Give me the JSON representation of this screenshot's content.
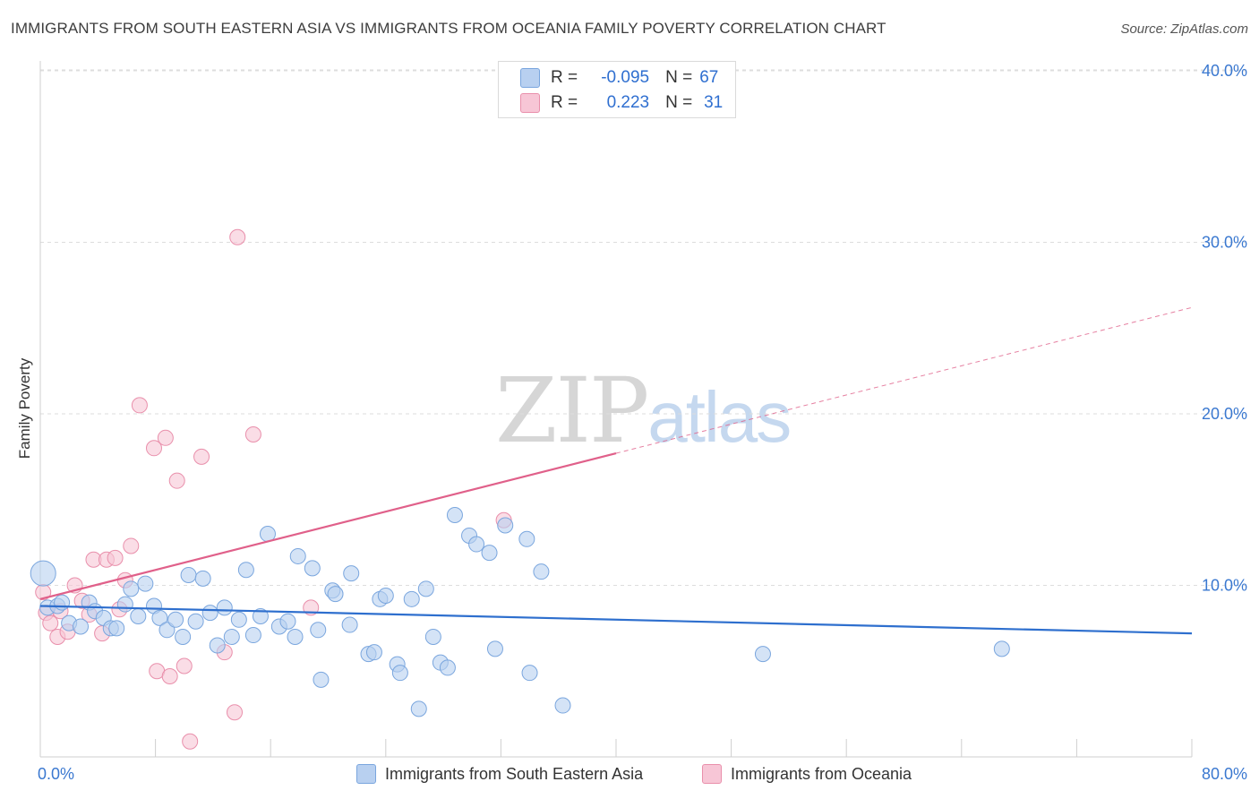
{
  "header": {
    "title": "IMMIGRANTS FROM SOUTH EASTERN ASIA VS IMMIGRANTS FROM OCEANIA FAMILY POVERTY CORRELATION CHART",
    "source": "Source: ZipAtlas.com"
  },
  "legend": {
    "row1": {
      "r_label": "R =",
      "r_value": "-0.095",
      "n_label": "N =",
      "n_value": "67"
    },
    "row2": {
      "r_label": "R =",
      "r_value": "0.223",
      "n_label": "N =",
      "n_value": "31"
    }
  },
  "watermark": {
    "zip": "ZIP",
    "atlas": "atlas"
  },
  "bottom_legend": {
    "series1": "Immigrants from South Eastern Asia",
    "series2": "Immigrants from Oceania"
  },
  "colors": {
    "blue_fill": "#b8d0f0",
    "blue_stroke": "#7aa6de",
    "blue_line": "#2e6fce",
    "pink_fill": "#f7c6d6",
    "pink_stroke": "#e98fab",
    "pink_line": "#e0608a",
    "tick_label": "#3a78d0",
    "grid": "#dddddd"
  },
  "chart_data": {
    "type": "scatter",
    "title": "IMMIGRANTS FROM SOUTH EASTERN ASIA VS IMMIGRANTS FROM OCEANIA FAMILY POVERTY CORRELATION CHART",
    "xlabel": "",
    "ylabel": "Family Poverty",
    "xlim": [
      0,
      80
    ],
    "ylim": [
      0,
      41
    ],
    "x_tick_labels": [
      "0.0%",
      "80.0%"
    ],
    "y_ticks": [
      10,
      20,
      30,
      40
    ],
    "y_tick_labels": [
      "10.0%",
      "20.0%",
      "30.0%",
      "40.0%"
    ],
    "grid": true,
    "legend_position": "top-center",
    "series": [
      {
        "name": "Immigrants from South Eastern Asia",
        "color": "#b8d0f0",
        "r": -0.095,
        "n": 67,
        "trend": {
          "x": [
            0,
            80
          ],
          "y": [
            8.8,
            7.2
          ]
        },
        "points": [
          [
            0.2,
            10.7
          ],
          [
            0.5,
            8.7
          ],
          [
            1.2,
            8.8
          ],
          [
            1.5,
            9.0
          ],
          [
            2.0,
            7.8
          ],
          [
            2.8,
            7.6
          ],
          [
            3.4,
            9.0
          ],
          [
            3.8,
            8.5
          ],
          [
            4.4,
            8.1
          ],
          [
            4.9,
            7.5
          ],
          [
            5.3,
            7.5
          ],
          [
            5.9,
            8.9
          ],
          [
            6.3,
            9.8
          ],
          [
            6.8,
            8.2
          ],
          [
            7.3,
            10.1
          ],
          [
            7.9,
            8.8
          ],
          [
            8.3,
            8.1
          ],
          [
            8.8,
            7.4
          ],
          [
            9.4,
            8.0
          ],
          [
            9.9,
            7.0
          ],
          [
            10.3,
            10.6
          ],
          [
            10.8,
            7.9
          ],
          [
            11.3,
            10.4
          ],
          [
            11.8,
            8.4
          ],
          [
            12.3,
            6.5
          ],
          [
            12.8,
            8.7
          ],
          [
            13.3,
            7.0
          ],
          [
            13.8,
            8.0
          ],
          [
            14.3,
            10.9
          ],
          [
            14.8,
            7.1
          ],
          [
            15.3,
            8.2
          ],
          [
            15.8,
            13.0
          ],
          [
            16.6,
            7.6
          ],
          [
            17.2,
            7.9
          ],
          [
            17.7,
            7.0
          ],
          [
            17.9,
            11.7
          ],
          [
            18.9,
            11.0
          ],
          [
            19.3,
            7.4
          ],
          [
            19.5,
            4.5
          ],
          [
            20.3,
            9.7
          ],
          [
            20.5,
            9.5
          ],
          [
            21.5,
            7.7
          ],
          [
            21.6,
            10.7
          ],
          [
            22.8,
            6.0
          ],
          [
            23.2,
            6.1
          ],
          [
            23.6,
            9.2
          ],
          [
            24.0,
            9.4
          ],
          [
            24.8,
            5.4
          ],
          [
            25.0,
            4.9
          ],
          [
            25.8,
            9.2
          ],
          [
            26.3,
            2.8
          ],
          [
            26.8,
            9.8
          ],
          [
            27.3,
            7.0
          ],
          [
            27.8,
            5.5
          ],
          [
            28.3,
            5.2
          ],
          [
            28.8,
            14.1
          ],
          [
            29.8,
            12.9
          ],
          [
            30.3,
            12.4
          ],
          [
            31.2,
            11.9
          ],
          [
            31.6,
            6.3
          ],
          [
            32.3,
            13.5
          ],
          [
            33.8,
            12.7
          ],
          [
            34.0,
            4.9
          ],
          [
            34.8,
            10.8
          ],
          [
            36.3,
            3.0
          ],
          [
            50.2,
            6.0
          ],
          [
            66.8,
            6.3
          ]
        ]
      },
      {
        "name": "Immigrants from Oceania",
        "color": "#f7c6d6",
        "r": 0.223,
        "n": 31,
        "trend_solid": {
          "x": [
            0,
            40
          ],
          "y": [
            9.2,
            17.7
          ]
        },
        "trend_dashed": {
          "x": [
            40,
            80
          ],
          "y": [
            17.7,
            26.2
          ]
        },
        "points": [
          [
            0.2,
            9.6
          ],
          [
            0.4,
            8.4
          ],
          [
            0.7,
            7.8
          ],
          [
            1.2,
            7.0
          ],
          [
            1.4,
            8.5
          ],
          [
            1.9,
            7.3
          ],
          [
            2.4,
            10.0
          ],
          [
            2.9,
            9.1
          ],
          [
            3.4,
            8.3
          ],
          [
            3.7,
            11.5
          ],
          [
            4.3,
            7.2
          ],
          [
            4.6,
            11.5
          ],
          [
            5.2,
            11.6
          ],
          [
            5.5,
            8.6
          ],
          [
            5.9,
            10.3
          ],
          [
            6.3,
            12.3
          ],
          [
            6.9,
            20.5
          ],
          [
            7.9,
            18.0
          ],
          [
            8.1,
            5.0
          ],
          [
            8.7,
            18.6
          ],
          [
            9.0,
            4.7
          ],
          [
            9.5,
            16.1
          ],
          [
            10.0,
            5.3
          ],
          [
            10.4,
            0.9
          ],
          [
            11.2,
            17.5
          ],
          [
            12.8,
            6.1
          ],
          [
            13.5,
            2.6
          ],
          [
            13.7,
            30.3
          ],
          [
            14.8,
            18.8
          ],
          [
            18.8,
            8.7
          ],
          [
            32.2,
            13.8
          ]
        ]
      }
    ]
  }
}
